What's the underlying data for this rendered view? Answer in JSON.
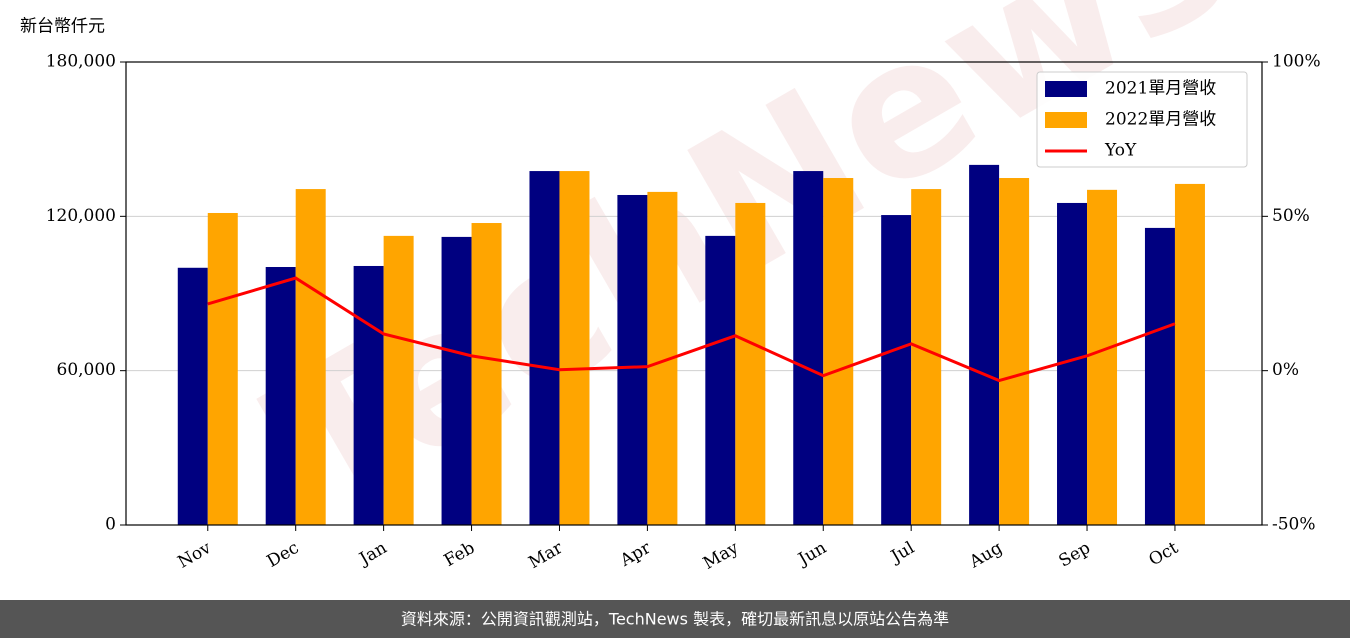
{
  "chart_data": {
    "type": "bar",
    "ylabel": "新台幣仟元",
    "watermark": "TechNews",
    "categories": [
      "Nov",
      "Dec",
      "Jan",
      "Feb",
      "Mar",
      "Apr",
      "May",
      "Jun",
      "Jul",
      "Aug",
      "Sep",
      "Oct"
    ],
    "series": [
      {
        "name": "2021單月營收",
        "color": "#000080",
        "values": [
          100000,
          100300,
          100700,
          112000,
          137600,
          128300,
          112400,
          137600,
          120500,
          140000,
          125200,
          115500
        ]
      },
      {
        "name": "2022單月營收",
        "color": "#ffa500",
        "values": [
          121300,
          130600,
          112400,
          117400,
          137600,
          129500,
          125200,
          134900,
          130600,
          134900,
          130300,
          132600
        ]
      },
      {
        "name": "YoY",
        "color": "#ff0000",
        "type": "line",
        "axis": "y2",
        "values": [
          21.6,
          30,
          11.9,
          4.8,
          0.3,
          1.3,
          11.3,
          -1.6,
          8.7,
          -3.2,
          4.8,
          15.2
        ]
      }
    ],
    "ylim": [
      0,
      180000
    ],
    "yticks": [
      0,
      {
        "value": 60000,
        "label": "60,000"
      },
      {
        "value": 120000,
        "label": "120,000"
      },
      {
        "value": 180000,
        "label": "180,000"
      }
    ],
    "y2lim": [
      -50,
      100
    ],
    "y2ticks": [
      {
        "value": -50,
        "label": "-50%"
      },
      {
        "value": 0,
        "label": "0%"
      },
      {
        "value": 50,
        "label": "50%"
      },
      {
        "value": 100,
        "label": "100%"
      }
    ],
    "grid": true,
    "legend": "upper right"
  },
  "footer": "資料來源：公開資訊觀測站，TechNews 製表，確切最新訊息以原站公告為準"
}
